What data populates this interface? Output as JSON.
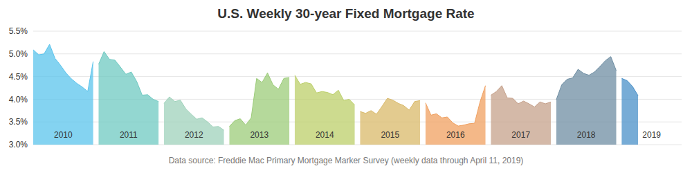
{
  "chart_data": {
    "type": "area",
    "title": "U.S. Weekly 30-year Fixed Mortgage Rate",
    "source": "Data source: Freddie Mac Primary Mortgage Marker Survey (weekly data through April 11, 2019)",
    "ylim": [
      3,
      5.5
    ],
    "yticks": [
      {
        "value": 3,
        "label": "3.0%"
      },
      {
        "value": 3.5,
        "label": "3.5%"
      },
      {
        "value": 4,
        "label": "4.0%"
      },
      {
        "value": 4.5,
        "label": "4.5%"
      },
      {
        "value": 5,
        "label": "5.0%"
      },
      {
        "value": 5.5,
        "label": "5.5%"
      }
    ],
    "grid": true,
    "tick_labels": "y",
    "series": [
      {
        "name": "2010",
        "color": "#5bc4ec",
        "values": [
          5.09,
          4.98,
          5.0,
          5.21,
          4.9,
          4.75,
          4.58,
          4.45,
          4.35,
          4.27,
          4.17,
          4.83
        ]
      },
      {
        "name": "2011",
        "color": "#6fc9c2",
        "values": [
          4.77,
          5.05,
          4.88,
          4.86,
          4.71,
          4.55,
          4.6,
          4.39,
          4.09,
          4.1,
          4.0,
          3.95
        ]
      },
      {
        "name": "2012",
        "color": "#9fd2bb",
        "values": [
          3.91,
          4.05,
          3.95,
          3.98,
          3.79,
          3.67,
          3.56,
          3.59,
          3.5,
          3.39,
          3.4,
          3.32
        ]
      },
      {
        "name": "2013",
        "color": "#9ccc7a",
        "values": [
          3.4,
          3.53,
          3.57,
          3.43,
          3.59,
          4.46,
          4.37,
          4.58,
          4.32,
          4.22,
          4.46,
          4.48
        ]
      },
      {
        "name": "2014",
        "color": "#bccf6a",
        "values": [
          4.53,
          4.33,
          4.37,
          4.34,
          4.14,
          4.17,
          4.15,
          4.1,
          4.2,
          3.97,
          4.0,
          3.87
        ]
      },
      {
        "name": "2015",
        "color": "#d9b96a",
        "values": [
          3.73,
          3.69,
          3.75,
          3.67,
          3.84,
          4.02,
          3.98,
          3.91,
          3.86,
          3.76,
          3.95,
          3.97
        ]
      },
      {
        "name": "2016",
        "color": "#f0a060",
        "values": [
          3.92,
          3.65,
          3.68,
          3.59,
          3.61,
          3.48,
          3.41,
          3.43,
          3.46,
          3.47,
          3.94,
          4.3
        ]
      },
      {
        "name": "2017",
        "color": "#c6a18b",
        "values": [
          4.09,
          4.17,
          4.3,
          4.03,
          4.02,
          3.9,
          3.96,
          3.9,
          3.83,
          3.94,
          3.9,
          3.94
        ]
      },
      {
        "name": "2018",
        "color": "#6f8ea3",
        "values": [
          3.99,
          4.32,
          4.44,
          4.47,
          4.66,
          4.57,
          4.53,
          4.6,
          4.72,
          4.85,
          4.94,
          4.63
        ]
      },
      {
        "name": "2019",
        "color": "#4a90c8",
        "values": [
          4.46,
          4.41,
          4.28,
          4.08,
          null,
          null,
          null,
          null,
          null,
          null,
          null,
          null
        ]
      }
    ]
  }
}
